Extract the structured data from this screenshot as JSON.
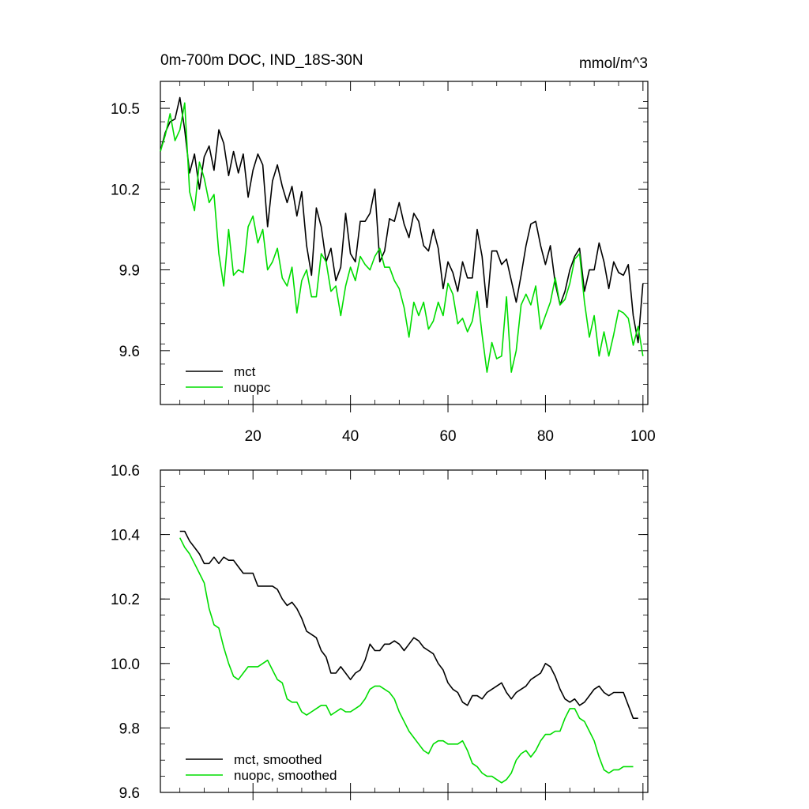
{
  "chart_data": [
    {
      "type": "line",
      "title": "0m-700m DOC, IND_18S-30N",
      "units": "mmol/m^3",
      "xlim": [
        1,
        101
      ],
      "ylim": [
        9.4,
        10.6
      ],
      "xticks": [
        20,
        40,
        60,
        80,
        100
      ],
      "yticks": [
        9.6,
        9.9,
        10.2,
        10.5
      ],
      "ytick_labels": [
        "9.6",
        "9.9",
        "10.2",
        "10.5"
      ],
      "xtick_labels": [
        "20",
        "40",
        "60",
        "80",
        "100"
      ],
      "legend_position": "bottom-left",
      "series": [
        {
          "name": "mct",
          "color": "#000000",
          "x_start": 1,
          "values": [
            10.34,
            10.41,
            10.45,
            10.46,
            10.54,
            10.42,
            10.26,
            10.33,
            10.2,
            10.32,
            10.36,
            10.27,
            10.42,
            10.37,
            10.25,
            10.34,
            10.26,
            10.33,
            10.17,
            10.27,
            10.33,
            10.29,
            10.06,
            10.23,
            10.29,
            10.21,
            10.15,
            10.21,
            10.1,
            10.19,
            9.99,
            9.88,
            10.13,
            10.06,
            9.93,
            9.98,
            9.86,
            9.91,
            10.11,
            9.96,
            9.93,
            10.08,
            10.08,
            10.11,
            10.2,
            9.93,
            9.97,
            10.09,
            10.08,
            10.15,
            10.07,
            10.02,
            10.11,
            10.08,
            9.99,
            9.97,
            10.05,
            9.98,
            9.83,
            9.93,
            9.89,
            9.82,
            9.93,
            9.87,
            9.87,
            10.05,
            9.95,
            9.76,
            9.97,
            9.97,
            9.92,
            9.94,
            9.86,
            9.78,
            9.88,
            9.99,
            10.07,
            10.08,
            9.99,
            9.92,
            9.99,
            9.85,
            9.77,
            9.82,
            9.9,
            9.95,
            9.98,
            9.82,
            9.9,
            9.9,
            10.0,
            9.93,
            9.83,
            9.93,
            9.89,
            9.88,
            9.92,
            9.73,
            9.63,
            9.85
          ]
        },
        {
          "name": "nuopc",
          "color": "#00dd00",
          "x_start": 1,
          "values": [
            10.34,
            10.4,
            10.48,
            10.38,
            10.42,
            10.52,
            10.19,
            10.12,
            10.3,
            10.24,
            10.15,
            10.18,
            9.96,
            9.84,
            10.05,
            9.88,
            9.9,
            9.89,
            10.06,
            10.1,
            10.0,
            10.05,
            9.9,
            9.93,
            9.98,
            9.87,
            9.84,
            9.91,
            9.74,
            9.86,
            9.9,
            9.8,
            9.8,
            9.96,
            9.93,
            9.82,
            9.84,
            9.73,
            9.84,
            9.91,
            9.86,
            9.95,
            9.92,
            9.9,
            9.95,
            9.98,
            9.91,
            9.91,
            9.86,
            9.83,
            9.76,
            9.65,
            9.78,
            9.73,
            9.78,
            9.68,
            9.71,
            9.78,
            9.73,
            9.85,
            9.81,
            9.7,
            9.72,
            9.67,
            9.71,
            9.82,
            9.66,
            9.52,
            9.63,
            9.57,
            9.58,
            9.8,
            9.52,
            9.6,
            9.77,
            9.81,
            9.77,
            9.84,
            9.68,
            9.73,
            9.78,
            9.87,
            9.77,
            9.79,
            9.85,
            9.94,
            9.96,
            9.78,
            9.65,
            9.73,
            9.58,
            9.67,
            9.58,
            9.66,
            9.75,
            9.74,
            9.72,
            9.62,
            9.69,
            9.58
          ]
        }
      ]
    },
    {
      "type": "line",
      "title": "",
      "xlim": [
        1,
        101
      ],
      "ylim": [
        9.6,
        10.6
      ],
      "xticks": [
        20,
        40,
        60,
        80,
        100
      ],
      "yticks": [
        9.6,
        9.8,
        10.0,
        10.2,
        10.4,
        10.6
      ],
      "ytick_labels": [
        "9.6",
        "9.8",
        "10.0",
        "10.2",
        "10.4",
        "10.6"
      ],
      "legend_position": "bottom-left",
      "series": [
        {
          "name": "mct, smoothed",
          "color": "#000000",
          "x_start": 5,
          "values": [
            10.41,
            10.41,
            10.38,
            10.36,
            10.34,
            10.31,
            10.31,
            10.33,
            10.31,
            10.33,
            10.32,
            10.32,
            10.3,
            10.28,
            10.28,
            10.28,
            10.24,
            10.24,
            10.24,
            10.24,
            10.23,
            10.2,
            10.18,
            10.19,
            10.17,
            10.14,
            10.1,
            10.09,
            10.08,
            10.04,
            10.02,
            9.97,
            9.97,
            9.99,
            9.97,
            9.95,
            9.97,
            9.98,
            10.01,
            10.06,
            10.04,
            10.04,
            10.06,
            10.06,
            10.07,
            10.06,
            10.04,
            10.06,
            10.08,
            10.07,
            10.05,
            10.04,
            10.03,
            10.0,
            9.98,
            9.94,
            9.92,
            9.91,
            9.88,
            9.87,
            9.9,
            9.9,
            9.89,
            9.91,
            9.92,
            9.93,
            9.94,
            9.91,
            9.89,
            9.91,
            9.92,
            9.93,
            9.95,
            9.96,
            9.97,
            10.0,
            9.99,
            9.96,
            9.92,
            9.89,
            9.88,
            9.89,
            9.87,
            9.88,
            9.9,
            9.92,
            9.93,
            9.91,
            9.9,
            9.91,
            9.91,
            9.91,
            9.87,
            9.83,
            9.83
          ]
        },
        {
          "name": "nuopc, smoothed",
          "color": "#00dd00",
          "x_start": 5,
          "values": [
            10.39,
            10.36,
            10.34,
            10.31,
            10.28,
            10.25,
            10.17,
            10.12,
            10.11,
            10.05,
            10.0,
            9.96,
            9.95,
            9.97,
            9.99,
            9.99,
            9.99,
            10.0,
            10.01,
            9.98,
            9.95,
            9.94,
            9.89,
            9.88,
            9.88,
            9.85,
            9.84,
            9.85,
            9.86,
            9.87,
            9.87,
            9.84,
            9.85,
            9.86,
            9.85,
            9.85,
            9.86,
            9.87,
            9.89,
            9.92,
            9.93,
            9.93,
            9.92,
            9.91,
            9.89,
            9.85,
            9.82,
            9.79,
            9.77,
            9.75,
            9.73,
            9.72,
            9.75,
            9.76,
            9.76,
            9.75,
            9.75,
            9.75,
            9.76,
            9.73,
            9.69,
            9.68,
            9.66,
            9.65,
            9.65,
            9.64,
            9.63,
            9.64,
            9.66,
            9.7,
            9.72,
            9.73,
            9.71,
            9.73,
            9.76,
            9.78,
            9.78,
            9.79,
            9.79,
            9.83,
            9.86,
            9.86,
            9.83,
            9.82,
            9.79,
            9.76,
            9.71,
            9.67,
            9.66,
            9.67,
            9.67,
            9.68,
            9.68,
            9.68
          ]
        }
      ]
    }
  ]
}
